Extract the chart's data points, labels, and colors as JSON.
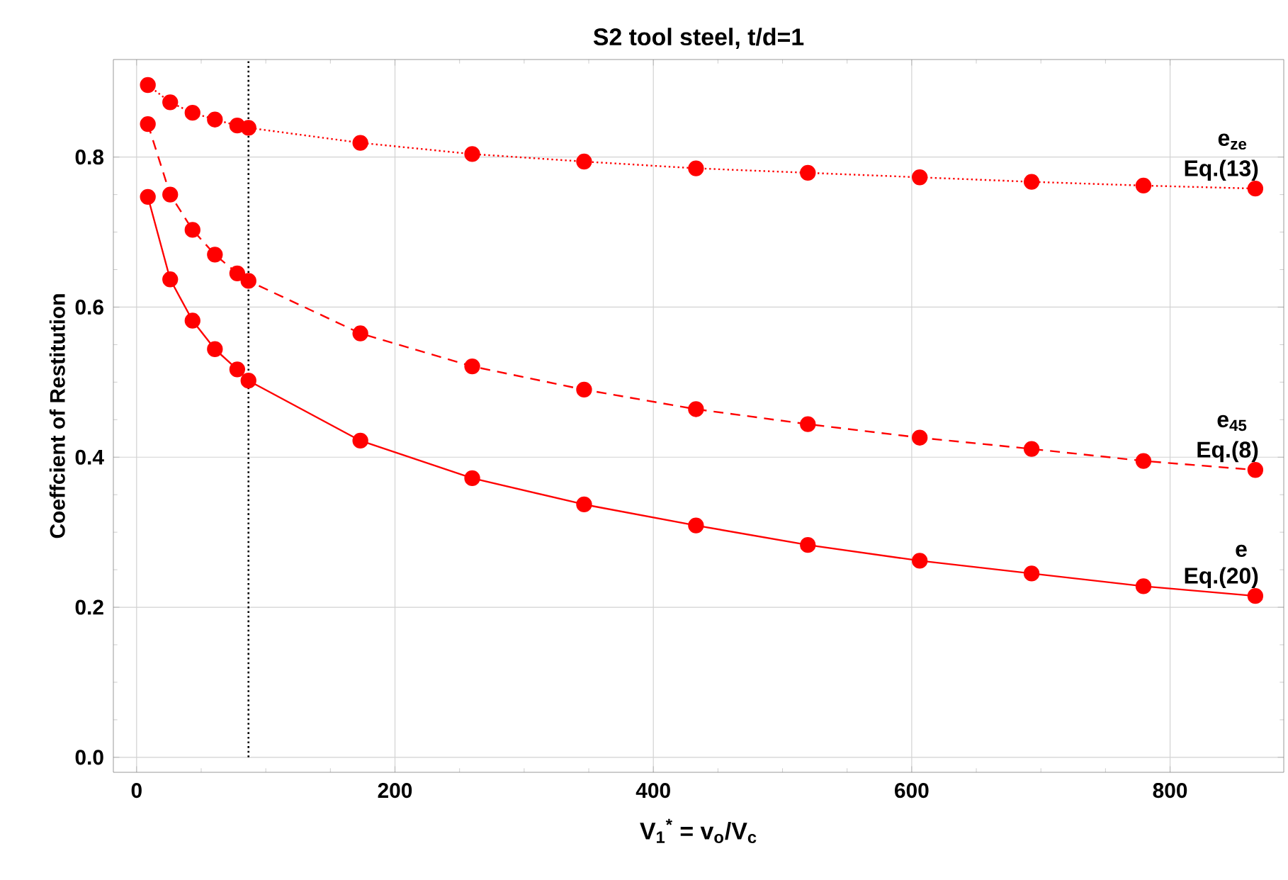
{
  "chart_data": {
    "type": "line",
    "title": "S2 tool steel, t/d=1",
    "xlabel": "V$_{1}$$^{*}$ = v$_{o}$/V$_{c}$",
    "ylabel": "Coeffcient of Restitution",
    "x": [
      8.7,
      26,
      43.3,
      60.6,
      77.9,
      86.6,
      173.2,
      259.8,
      346.4,
      433,
      519.6,
      606.2,
      692.8,
      779.4,
      866
    ],
    "series": [
      {
        "name": "e$_{ze}$",
        "color": "#ff0000",
        "line_style": "dotted",
        "values": [
          0.896,
          0.873,
          0.859,
          0.85,
          0.842,
          0.839,
          0.819,
          0.804,
          0.794,
          0.785,
          0.779,
          0.773,
          0.767,
          0.762,
          0.758
        ]
      },
      {
        "name": "e$_{45}$",
        "color": "#ff0000",
        "line_style": "dashed",
        "values": [
          0.844,
          0.75,
          0.703,
          0.67,
          0.645,
          0.635,
          0.565,
          0.521,
          0.49,
          0.464,
          0.444,
          0.426,
          0.411,
          0.395,
          0.383
        ]
      },
      {
        "name": "e",
        "color": "#ff0000",
        "line_style": "solid",
        "values": [
          0.747,
          0.637,
          0.582,
          0.544,
          0.517,
          0.502,
          0.422,
          0.372,
          0.337,
          0.309,
          0.283,
          0.262,
          0.245,
          0.228,
          0.215
        ]
      }
    ],
    "marker": "circle",
    "xlim": [
      -18,
      888
    ],
    "ylim": [
      -0.02,
      0.93
    ],
    "xticks": [
      0,
      200,
      400,
      600,
      800
    ],
    "yticks": [
      {
        "value": 0,
        "label": "0.0"
      },
      {
        "value": 0.2,
        "label": "0.2"
      },
      {
        "value": 0.4,
        "label": "0.4"
      },
      {
        "value": 0.6,
        "label": "0.6"
      },
      {
        "value": 0.8,
        "label": "0.8"
      }
    ],
    "grid": true,
    "ref_lines": [
      {
        "axis": "x",
        "value": 86.6,
        "color": "#000000",
        "line_style": "dotted"
      }
    ],
    "annotations": [
      "Eq.(13)",
      "Eq.(8)",
      "Eq.(20)"
    ]
  }
}
